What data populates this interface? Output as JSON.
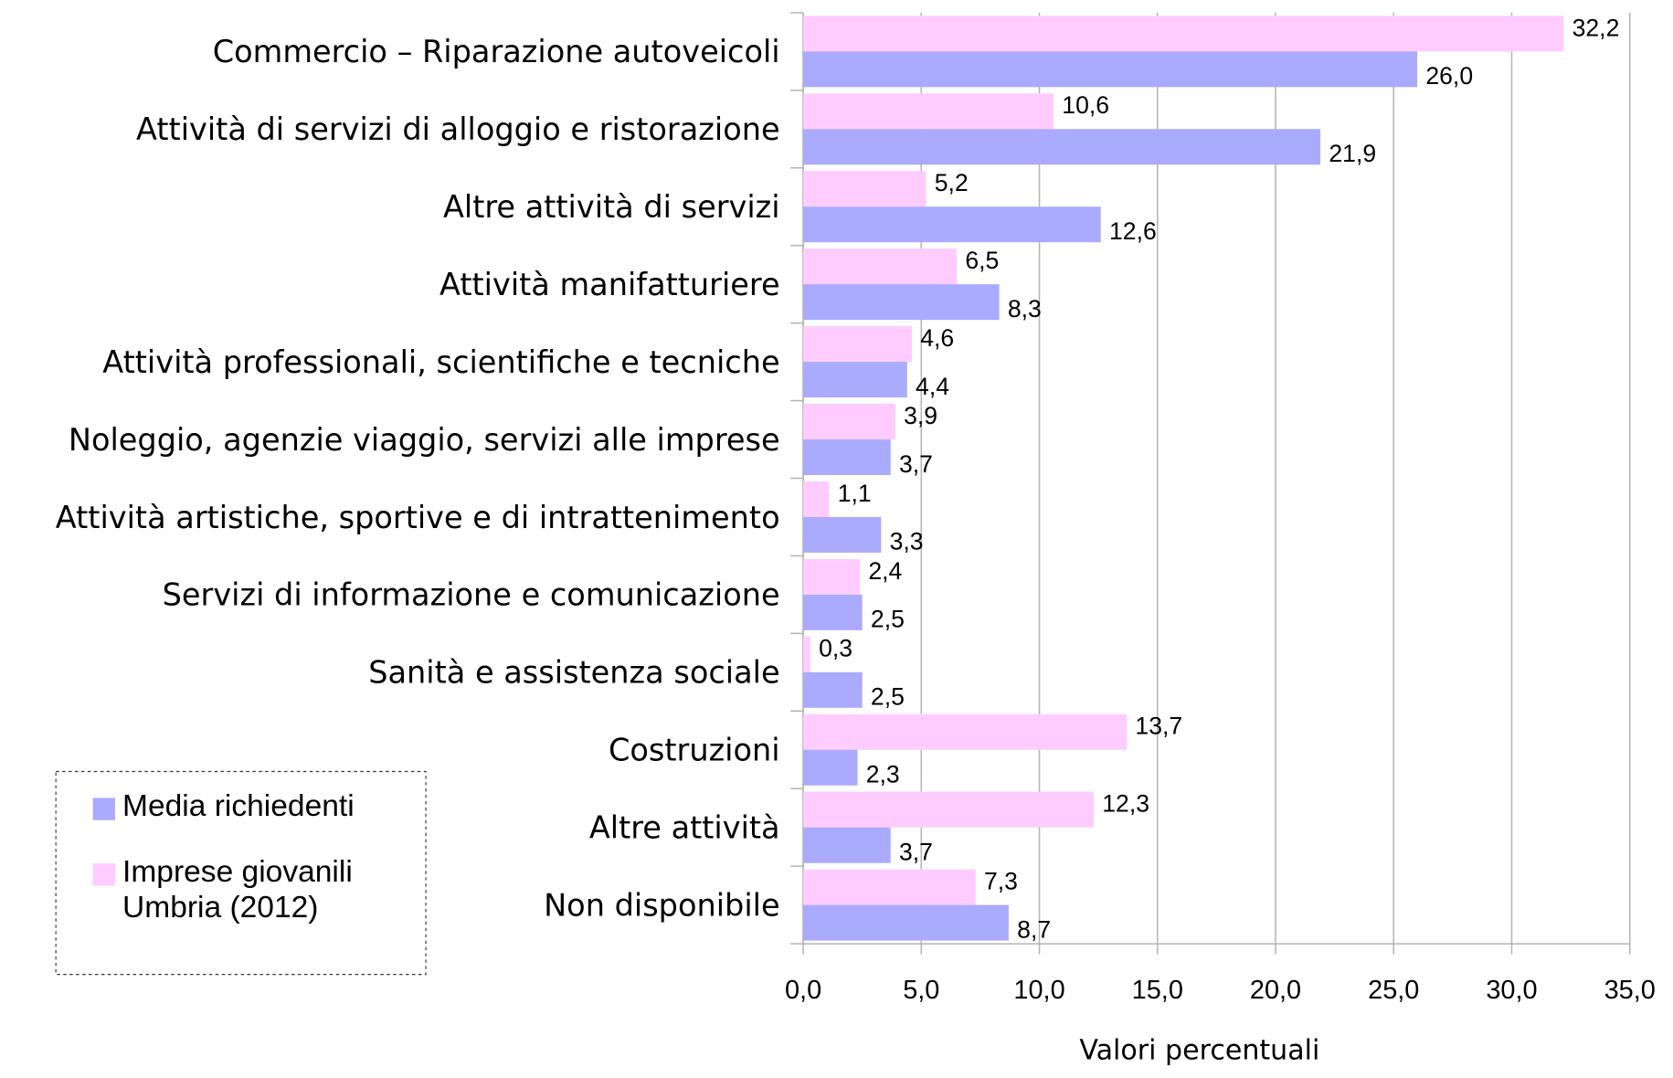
{
  "chart_data": {
    "type": "bar",
    "orientation": "horizontal",
    "categories": [
      "Commercio – Riparazione autoveicoli",
      "Attività di servizi di alloggio e ristorazione",
      "Altre attività di servizi",
      "Attività manifatturiere",
      "Attività professionali, scientifiche e tecniche",
      "Noleggio, agenzie viaggio, servizi alle imprese",
      "Attività artistiche, sportive e di intrattenimento",
      "Servizi di informazione e comunicazione",
      "Sanità e assistenza sociale",
      "Costruzioni",
      "Altre attività",
      "Non disponibile"
    ],
    "series": [
      {
        "name": "Media richiedenti",
        "color": "#aaaaff",
        "values": [
          26.0,
          21.9,
          12.6,
          8.3,
          4.4,
          3.7,
          3.3,
          2.5,
          2.5,
          2.3,
          3.7,
          8.7
        ],
        "value_labels": [
          "26,0",
          "21,9",
          "12,6",
          "8,3",
          "4,4",
          "3,7",
          "3,3",
          "2,5",
          "2,5",
          "2,3",
          "3,7",
          "8,7"
        ]
      },
      {
        "name": "Imprese giovanili Umbria (2012)",
        "color": "#ffccff",
        "values": [
          32.2,
          10.6,
          5.2,
          6.5,
          4.6,
          3.9,
          1.1,
          2.4,
          0.3,
          13.7,
          12.3,
          7.3
        ],
        "value_labels": [
          "32,2",
          "10,6",
          "5,2",
          "6,5",
          "4,6",
          "3,9",
          "1,1",
          "2,4",
          "0,3",
          "13,7",
          "12,3",
          "7,3"
        ]
      }
    ],
    "xlabel": "Valori percentuali",
    "xlim": [
      0,
      35
    ],
    "xticks": [
      {
        "value": 0,
        "label": "0,0"
      },
      {
        "value": 5,
        "label": "5,0"
      },
      {
        "value": 10,
        "label": "10,0"
      },
      {
        "value": 15,
        "label": "15,0"
      },
      {
        "value": 20,
        "label": "20,0"
      },
      {
        "value": 25,
        "label": "25,0"
      },
      {
        "value": 30,
        "label": "30,0"
      },
      {
        "value": 35,
        "label": "35,0"
      }
    ],
    "grid": true,
    "legend": "lower left"
  }
}
